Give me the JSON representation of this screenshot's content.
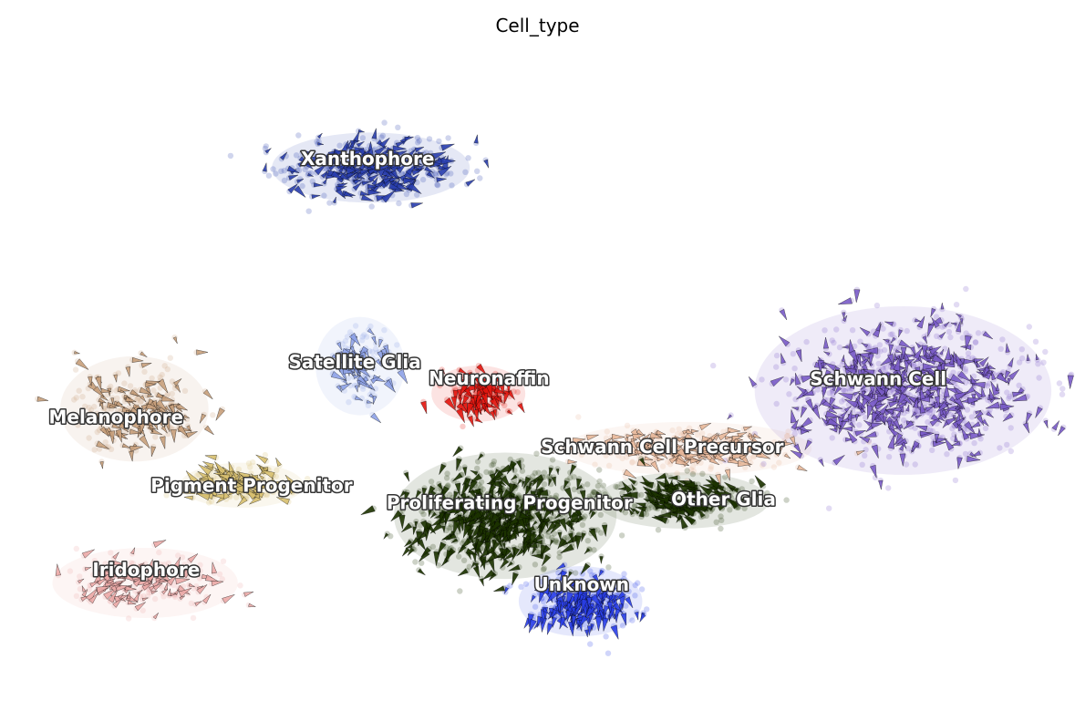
{
  "chart_data": {
    "type": "scatter",
    "title": "Cell_type",
    "xlabel": "",
    "ylabel": "",
    "grid": false,
    "legend": "on data",
    "axes_visible": false,
    "overlay": "velocity arrows",
    "xlim": [
      0,
      100
    ],
    "ylim": [
      0,
      100
    ],
    "series": [
      {
        "name": "Xanthophore",
        "color": "#2a3faf",
        "center": [
          34.5,
          83
        ],
        "spread": [
          8,
          5
        ],
        "count": 420
      },
      {
        "name": "Satellite Glia",
        "color": "#8fa3e8",
        "center": [
          33.5,
          50.5
        ],
        "spread": [
          3.6,
          7
        ],
        "count": 130
      },
      {
        "name": "Neuronaffin",
        "color": "#e4160f",
        "center": [
          44.5,
          46
        ],
        "spread": [
          3.8,
          4
        ],
        "count": 160
      },
      {
        "name": "Melanophore",
        "color": "#c8a07c",
        "center": [
          12.5,
          43.5
        ],
        "spread": [
          6,
          7.5
        ],
        "count": 260
      },
      {
        "name": "Pigment Progenitor",
        "color": "#d8c070",
        "center": [
          22.5,
          31
        ],
        "spread": [
          5,
          3.2
        ],
        "count": 200
      },
      {
        "name": "Iridophore",
        "color": "#ecaaa8",
        "center": [
          13.5,
          15
        ],
        "spread": [
          7.5,
          5
        ],
        "count": 220
      },
      {
        "name": "Schwann Cell Precursor",
        "color": "#e8b89a",
        "center": [
          64,
          37
        ],
        "spread": [
          10,
          3.8
        ],
        "count": 300
      },
      {
        "name": "Schwann Cell",
        "color": "#7a5cc8",
        "center": [
          84,
          46.5
        ],
        "spread": [
          12,
          12
        ],
        "count": 900
      },
      {
        "name": "Proliferating Progenitor",
        "color": "#1c3300",
        "center": [
          47,
          26
        ],
        "spread": [
          9,
          9
        ],
        "count": 900
      },
      {
        "name": "Other Glia",
        "color": "#1c3300",
        "center": [
          63.5,
          28.5
        ],
        "spread": [
          7,
          4
        ],
        "count": 300
      },
      {
        "name": "Unknown",
        "color": "#2a3fe8",
        "center": [
          54,
          12
        ],
        "spread": [
          5,
          5
        ],
        "count": 330
      }
    ],
    "annotations": [
      {
        "text": "Xanthophore",
        "x": 34.2,
        "y": 84.5
      },
      {
        "text": "Satellite Glia",
        "x": 33,
        "y": 51.2
      },
      {
        "text": "Neuronaffin",
        "x": 45.5,
        "y": 48.5
      },
      {
        "text": "Melanophore",
        "x": 10.8,
        "y": 42.2
      },
      {
        "text": "Pigment Progenitor",
        "x": 23.4,
        "y": 31
      },
      {
        "text": "Iridophore",
        "x": 13.6,
        "y": 17.2
      },
      {
        "text": "Schwann Cell Precursor",
        "x": 61.6,
        "y": 37.3
      },
      {
        "text": "Schwann Cell",
        "x": 81.7,
        "y": 48.4
      },
      {
        "text": "Proliferating Progenitor",
        "x": 47.4,
        "y": 28.1
      },
      {
        "text": "Other Glia",
        "x": 67.3,
        "y": 28.7
      },
      {
        "text": "Unknown",
        "x": 54.1,
        "y": 14.8
      }
    ]
  }
}
